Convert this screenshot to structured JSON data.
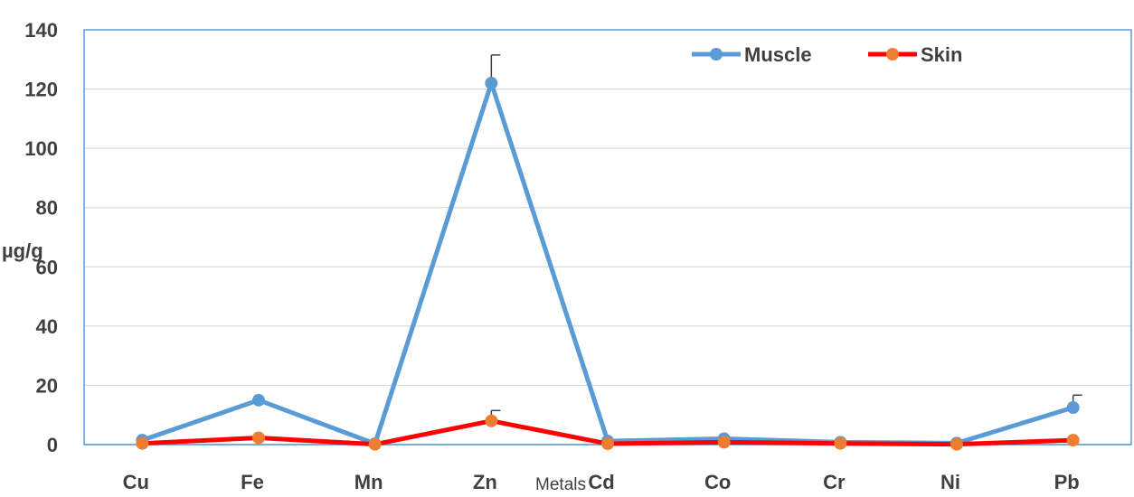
{
  "chart_data": {
    "type": "line",
    "title": "",
    "xlabel": "Metals",
    "ylabel": "µg/g",
    "categories": [
      "Cu",
      "Fe",
      "Mn",
      "Zn",
      "Cd",
      "Co",
      "Cr",
      "Ni",
      "Pb"
    ],
    "yticks": [
      "0",
      "20",
      "40",
      "60",
      "80",
      "100",
      "120",
      "140"
    ],
    "ylim": [
      0,
      140
    ],
    "grid": true,
    "legend_position": "top-right",
    "series": [
      {
        "name": "Muscle",
        "color": "#5b9bd5",
        "values": [
          1.5,
          15.0,
          0.3,
          122.0,
          1.2,
          2.0,
          0.8,
          0.5,
          12.5
        ],
        "error_plus": [
          0,
          0,
          0,
          9.5,
          0,
          0,
          0,
          0,
          4.2
        ]
      },
      {
        "name": "Skin",
        "color": "#ff0000",
        "marker_color": "#ed7d31",
        "values": [
          0.4,
          2.3,
          0.1,
          8.0,
          0.3,
          0.8,
          0.4,
          0.1,
          1.5
        ],
        "error_plus": [
          0,
          0,
          0,
          3.5,
          0,
          0,
          0,
          0,
          0
        ]
      }
    ]
  }
}
